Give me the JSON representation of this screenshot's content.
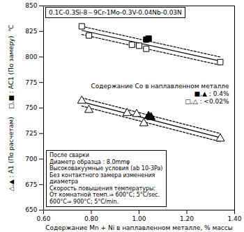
{
  "chart_data": {
    "type": "scatter",
    "title": "0.1C-0.3Si-8～9Cr-1Mo-0.3V-0.04Nb-0.03N",
    "x_label": "Содержание Mn + Ni в наплавленном металле, % массы",
    "y_label": "△,▲ : A1 (По расчетам)    □,■ : AC1 (По замеру)  ℃",
    "xlim": [
      0.6,
      1.4
    ],
    "xticks": [
      {
        "value": 0.6,
        "label": "0.60"
      },
      {
        "value": 0.8,
        "label": "0.80"
      },
      {
        "value": 1.0,
        "label": "1.00"
      },
      {
        "value": 1.2,
        "label": "1.20"
      },
      {
        "value": 1.4,
        "label": "1.40"
      }
    ],
    "ylim": [
      650,
      850
    ],
    "yticks": [
      650,
      675,
      700,
      725,
      750,
      775,
      800,
      825,
      850
    ],
    "grid": false,
    "series": [
      {
        "name": "□",
        "marker": "square",
        "color": "#000000",
        "x": [
          0.76,
          0.79,
          0.97,
          1.0,
          1.03,
          1.34
        ],
        "values": [
          830,
          821,
          812,
          811,
          808,
          795
        ]
      },
      {
        "name": "■",
        "marker": "filled-square",
        "color": "#000000",
        "x": [
          1.03,
          1.04
        ],
        "values": [
          817,
          818
        ]
      },
      {
        "name": "△",
        "marker": "triangle",
        "color": "#000000",
        "x": [
          0.76,
          0.79,
          0.95,
          0.99,
          1.02,
          1.34
        ],
        "values": [
          757,
          748,
          745,
          744,
          735,
          720
        ]
      },
      {
        "name": "▲",
        "marker": "filled-triangle",
        "color": "#000000",
        "x": [
          1.04,
          1.05
        ],
        "values": [
          742,
          741
        ]
      }
    ],
    "lines": [
      {
        "line_style": "solid",
        "color": "#000000",
        "x": [
          0.76,
          1.34
        ],
        "values": [
          826,
          796
        ]
      },
      {
        "line_style": "dashed",
        "color": "#000000",
        "x": [
          0.76,
          1.34
        ],
        "values": [
          830,
          800
        ]
      },
      {
        "line_style": "dashed",
        "color": "#000000",
        "x": [
          0.76,
          1.34
        ],
        "values": [
          822,
          792
        ]
      },
      {
        "line_style": "solid",
        "color": "#000000",
        "x": [
          0.76,
          1.34
        ],
        "values": [
          756,
          721
        ]
      },
      {
        "line_style": "dashed",
        "color": "#000000",
        "x": [
          0.76,
          1.34
        ],
        "values": [
          760,
          725
        ]
      },
      {
        "line_style": "dashed",
        "color": "#000000",
        "x": [
          0.76,
          1.34
        ],
        "values": [
          752,
          717
        ]
      }
    ],
    "legend_text": {
      "title": "Содержание Co в наплавленном металле",
      "entries": [
        "■,▲ : 0.4%",
        "□,△ : <0.02%"
      ]
    },
    "note": [
      "После сварки",
      "Диаметр образца : 8.0mmφ",
      "Высоковакуумные условия (ab 10-3Pa)",
      "Без контактного замера изменения",
      "диаметра",
      "Скорость повышения температуры:",
      "От комнатной темп.⇒ 600°C; 5°C/sec.",
      "600°C⇒ 900°C; 5°C/min."
    ]
  }
}
